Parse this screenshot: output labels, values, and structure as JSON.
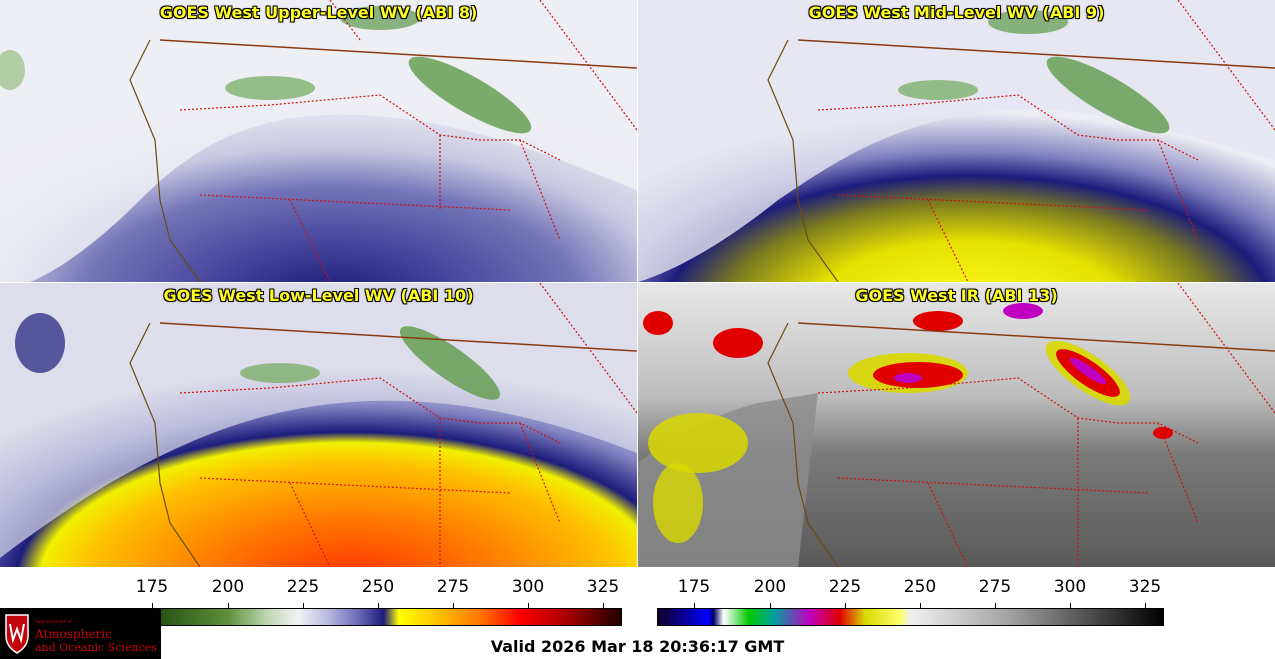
{
  "panels": [
    {
      "id": "p1",
      "title": "GOES West Upper-Level WV (ABI 8)",
      "scheme": "wv-upper"
    },
    {
      "id": "p2",
      "title": "GOES West Mid-Level WV (ABI 9)",
      "scheme": "wv-mid"
    },
    {
      "id": "p3",
      "title": "GOES West Low-Level WV (ABI 10)",
      "scheme": "wv-low"
    },
    {
      "id": "p4",
      "title": "GOES West IR (ABI 13)",
      "scheme": "ir"
    }
  ],
  "colorbars": {
    "wv": {
      "ticks": [
        "175",
        "200",
        "225",
        "250",
        "275",
        "300",
        "325"
      ]
    },
    "ir": {
      "ticks": [
        "175",
        "200",
        "225",
        "250",
        "275",
        "300",
        "325"
      ]
    }
  },
  "footer": {
    "valid": "Valid 2026 Mar 18 20:36:17 GMT"
  },
  "logo": {
    "dept": "Department of",
    "line1": "Atmospheric",
    "line2": "and Oceanic Sciences"
  },
  "colors": {
    "title": "#ffff22",
    "border": "#d01010",
    "coast": "#6b4a10"
  }
}
